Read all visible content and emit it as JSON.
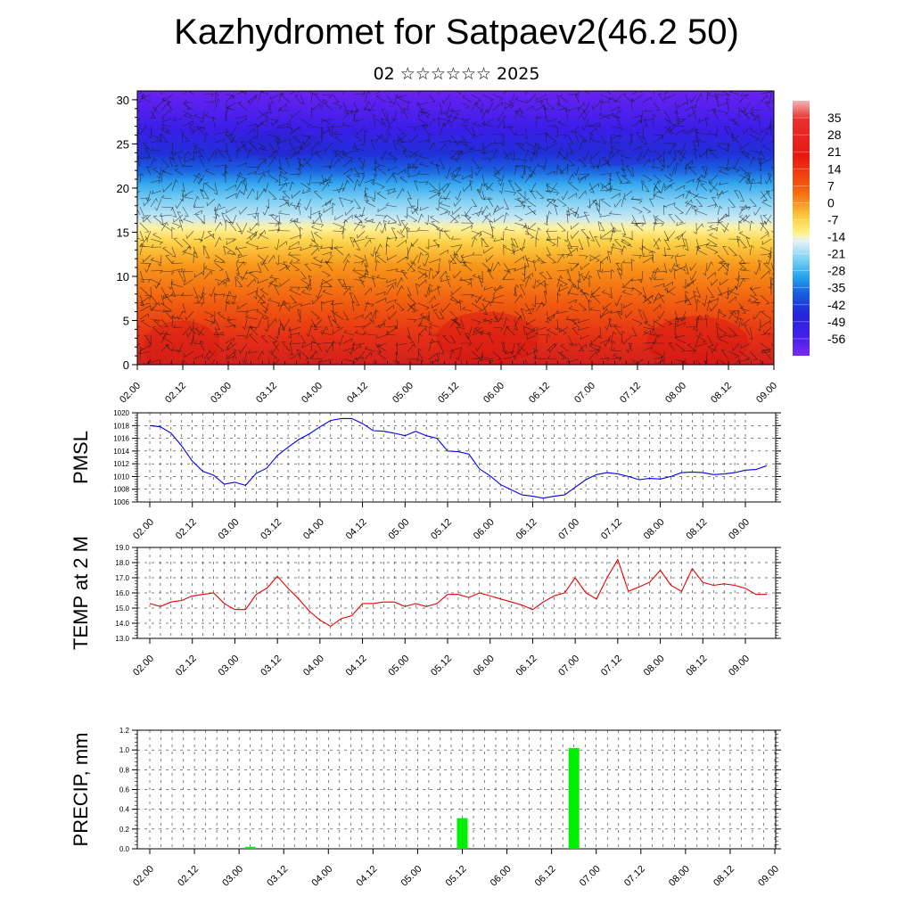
{
  "title": "Kazhydromet for Satpaev2(46.2 50)",
  "subtitle": "02 ☆☆☆☆☆☆ 2025",
  "colors": {
    "pmsl": "#0000e6",
    "temp": "#e60000",
    "precip": "#00ee00"
  },
  "chart_data": [
    {
      "type": "heatmap",
      "title": "",
      "xlabel": "",
      "ylabel": "",
      "x_tick_labels": [
        "02.00",
        "02.12",
        "03.00",
        "03.12",
        "04.00",
        "04.12",
        "05.00",
        "05.12",
        "06.00",
        "06.12",
        "07.00",
        "07.12",
        "08.00",
        "08.12",
        "09.00"
      ],
      "y_ticks": [
        0,
        5,
        10,
        15,
        20,
        25,
        30
      ],
      "ylim": [
        0,
        31
      ],
      "overlay": "wind-barbs",
      "colorbar_labels": [
        "35",
        "28",
        "21",
        "14",
        "7",
        "0",
        "-7",
        "-14",
        "-21",
        "-28",
        "-35",
        "-42",
        "-49",
        "-56"
      ],
      "colorbar_range": [
        -63,
        42
      ]
    },
    {
      "type": "line",
      "ylabel": "PMSL",
      "x_tick_labels": [
        "02.00",
        "02.12",
        "03.00",
        "03.12",
        "04.00",
        "04.12",
        "05.00",
        "05.12",
        "06.00",
        "06.12",
        "07.00",
        "07.12",
        "08.00",
        "08.12",
        "09.00"
      ],
      "y_tick_labels": [
        "1006",
        "1008",
        "1010",
        "1012",
        "1014",
        "1016",
        "1018",
        "1020"
      ],
      "ylim": [
        1006,
        1020
      ],
      "grid": true,
      "series": [
        {
          "values": [
            1018.0,
            1017.8,
            1016.8,
            1014.8,
            1012.4,
            1010.8,
            1010.2,
            1008.8,
            1009.1,
            1008.6,
            1010.5,
            1011.3,
            1013.3,
            1014.6,
            1015.8,
            1016.7,
            1017.8,
            1018.8,
            1019.1,
            1019.1,
            1018.3,
            1017.2,
            1017.1,
            1016.8,
            1016.4,
            1017.1,
            1016.4,
            1016.0,
            1014.0,
            1013.9,
            1013.5,
            1011.2,
            1010.1,
            1008.7,
            1007.9,
            1007.1,
            1006.9,
            1006.6,
            1006.9,
            1007.1,
            1008.3,
            1009.5,
            1010.3,
            1010.6,
            1010.4,
            1010.0,
            1009.5,
            1009.7,
            1009.6,
            1010.0,
            1010.6,
            1010.7,
            1010.6,
            1010.3,
            1010.4,
            1010.6,
            1011.0,
            1011.1,
            1011.7
          ]
        }
      ]
    },
    {
      "type": "line",
      "ylabel": "TEMP at 2 M",
      "x_tick_labels": [
        "02.00",
        "02.12",
        "03.00",
        "03.12",
        "04.00",
        "04.12",
        "05.00",
        "05.12",
        "06.00",
        "06.12",
        "07.00",
        "07.12",
        "08.00",
        "08.12",
        "09.00"
      ],
      "y_tick_labels": [
        "13.0",
        "14.0",
        "15.0",
        "16.0",
        "17.0",
        "18.0",
        "19.0"
      ],
      "ylim": [
        13,
        19
      ],
      "grid": true,
      "series": [
        {
          "values": [
            15.3,
            15.1,
            15.4,
            15.5,
            15.8,
            15.9,
            16.0,
            15.3,
            14.9,
            14.9,
            15.9,
            16.3,
            17.1,
            16.3,
            15.6,
            14.8,
            14.2,
            13.8,
            14.3,
            14.5,
            15.3,
            15.3,
            15.4,
            15.4,
            15.1,
            15.3,
            15.1,
            15.3,
            15.9,
            15.9,
            15.7,
            16.0,
            15.8,
            15.6,
            15.4,
            15.2,
            14.9,
            15.4,
            15.8,
            16.0,
            17.0,
            16.0,
            15.6,
            17.0,
            18.2,
            16.1,
            16.4,
            16.7,
            17.5,
            16.5,
            16.1,
            17.6,
            16.7,
            16.5,
            16.6,
            16.5,
            16.3,
            15.9,
            15.9
          ]
        }
      ]
    },
    {
      "type": "bar",
      "ylabel": "PRECIP, mm",
      "x_tick_labels": [
        "02.00",
        "02.12",
        "03.00",
        "03.12",
        "04.00",
        "04.12",
        "05.00",
        "05.12",
        "06.00",
        "06.12",
        "07.00",
        "07.12",
        "08.00",
        "08.12",
        "09.00"
      ],
      "y_tick_labels": [
        "0.0",
        "0.2",
        "0.4",
        "0.6",
        "0.8",
        "1.0",
        "1.2"
      ],
      "ylim": [
        0,
        1.2
      ],
      "grid": true,
      "bars": [
        {
          "time_index": 9,
          "value": 0.02
        },
        {
          "time_index": 28,
          "value": 0.31
        },
        {
          "time_index": 38,
          "value": 1.02
        }
      ]
    }
  ]
}
